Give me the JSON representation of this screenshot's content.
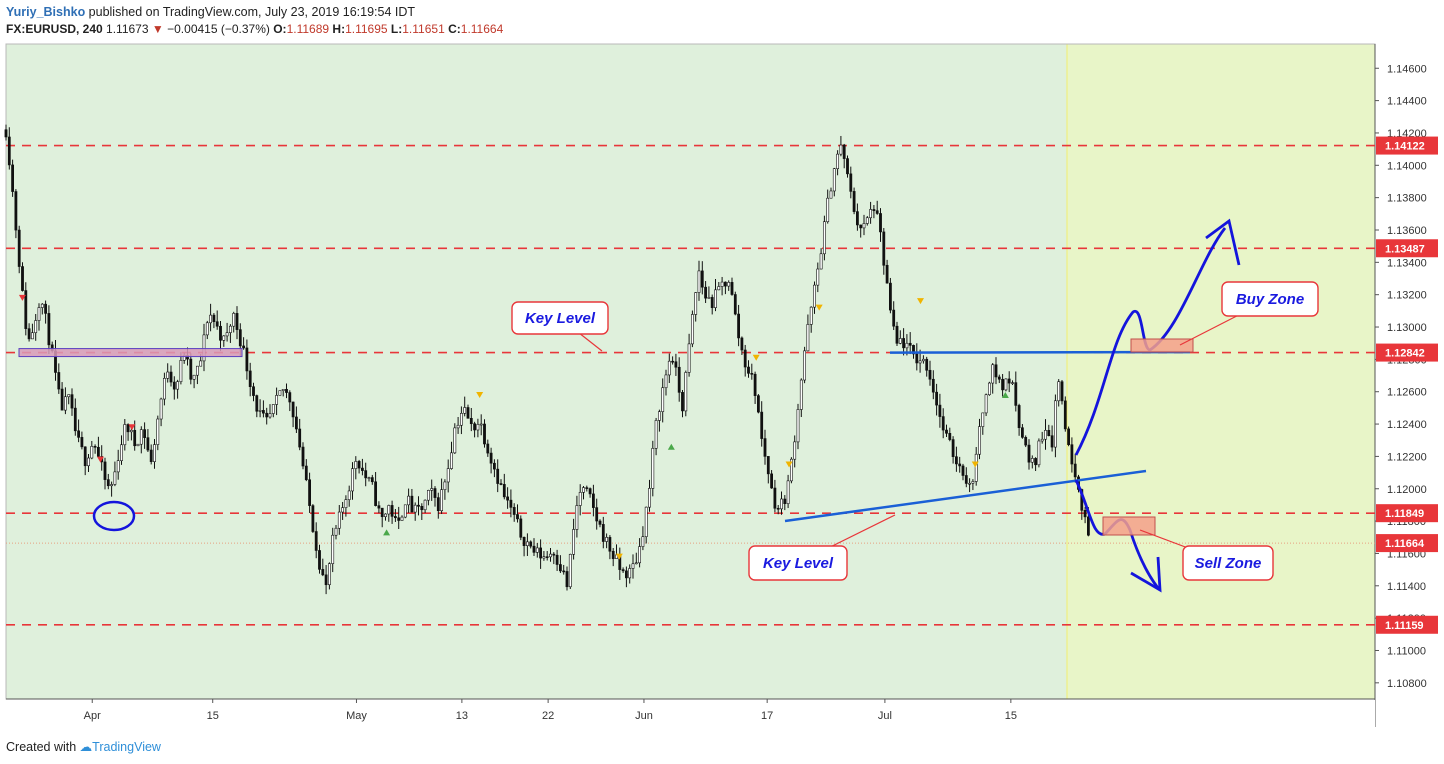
{
  "header": {
    "user": "Yuriy_Bishko",
    "published": " published on TradingView.com, July 23, 2019 16:19:54 IDT",
    "symbol": "FX:EURUSD, 240",
    "last": "1.11673",
    "change": "−0.00415 (−0.37%)",
    "o_label": "O:",
    "o": "1.11689",
    "h_label": "H:",
    "h": "1.11695",
    "l_label": "L:",
    "l": "1.11651",
    "c_label": "C:",
    "c": "1.11664"
  },
  "footer": {
    "created_with": "Created with",
    "brand": "TradingView"
  },
  "colors": {
    "bg_zone1": "#dff0dc",
    "bg_zone2": "#e8f5c8",
    "candle": "#111111",
    "level_line": "#e8363a",
    "trend_line": "#1a5fd6",
    "drawing": "#1414dc",
    "zone_fill": "#f4a08a",
    "label_red": "#e8363a"
  },
  "chart_data": {
    "type": "candlestick",
    "symbol": "FX:EURUSD",
    "timeframe": "240",
    "ylim": [
      1.107,
      1.1475
    ],
    "yticks": [
      "1.10800",
      "1.11000",
      "1.11200",
      "1.11400",
      "1.11600",
      "1.11800",
      "1.12000",
      "1.12200",
      "1.12400",
      "1.12600",
      "1.12800",
      "1.13000",
      "1.13200",
      "1.13400",
      "1.13600",
      "1.13800",
      "1.14000",
      "1.14200",
      "1.14400",
      "1.14600"
    ],
    "xticks": [
      {
        "label": "Apr",
        "t": 0.063
      },
      {
        "label": "15",
        "t": 0.151
      },
      {
        "label": "May",
        "t": 0.256
      },
      {
        "label": "13",
        "t": 0.333
      },
      {
        "label": "22",
        "t": 0.396
      },
      {
        "label": "Jun",
        "t": 0.466
      },
      {
        "label": "17",
        "t": 0.556
      },
      {
        "label": "Jul",
        "t": 0.642
      },
      {
        "label": "15",
        "t": 0.734
      }
    ],
    "levels": [
      {
        "label": "1.14122",
        "value": 1.14122
      },
      {
        "label": "1.13487",
        "value": 1.13487
      },
      {
        "label": "1.12842",
        "value": 1.12842
      },
      {
        "label": "1.11849",
        "value": 1.11849
      },
      {
        "label": "1.11159",
        "value": 1.11159
      }
    ],
    "current": {
      "label": "1.11664",
      "value": 1.11664
    },
    "path": [
      [
        0.0,
        1.1422
      ],
      [
        0.003,
        1.14
      ],
      [
        0.008,
        1.1355
      ],
      [
        0.012,
        1.132
      ],
      [
        0.016,
        1.129
      ],
      [
        0.02,
        1.13
      ],
      [
        0.025,
        1.132
      ],
      [
        0.03,
        1.13
      ],
      [
        0.035,
        1.1275
      ],
      [
        0.04,
        1.125
      ],
      [
        0.046,
        1.1255
      ],
      [
        0.052,
        1.123
      ],
      [
        0.058,
        1.1218
      ],
      [
        0.064,
        1.123
      ],
      [
        0.07,
        1.1212
      ],
      [
        0.074,
        1.12
      ],
      [
        0.078,
        1.1203
      ],
      [
        0.083,
        1.1225
      ],
      [
        0.088,
        1.124
      ],
      [
        0.094,
        1.1228
      ],
      [
        0.1,
        1.1238
      ],
      [
        0.106,
        1.1215
      ],
      [
        0.112,
        1.125
      ],
      [
        0.118,
        1.1275
      ],
      [
        0.124,
        1.1262
      ],
      [
        0.13,
        1.1285
      ],
      [
        0.136,
        1.1265
      ],
      [
        0.142,
        1.1278
      ],
      [
        0.148,
        1.131
      ],
      [
        0.154,
        1.13
      ],
      [
        0.16,
        1.129
      ],
      [
        0.166,
        1.1308
      ],
      [
        0.172,
        1.129
      ],
      [
        0.178,
        1.1268
      ],
      [
        0.184,
        1.1248
      ],
      [
        0.19,
        1.124
      ],
      [
        0.196,
        1.125
      ],
      [
        0.202,
        1.1262
      ],
      [
        0.208,
        1.1255
      ],
      [
        0.214,
        1.123
      ],
      [
        0.22,
        1.1198
      ],
      [
        0.226,
        1.1168
      ],
      [
        0.23,
        1.115
      ],
      [
        0.234,
        1.1138
      ],
      [
        0.238,
        1.1165
      ],
      [
        0.244,
        1.1183
      ],
      [
        0.25,
        1.12
      ],
      [
        0.256,
        1.122
      ],
      [
        0.262,
        1.1208
      ],
      [
        0.268,
        1.12
      ],
      [
        0.274,
        1.118
      ],
      [
        0.28,
        1.119
      ],
      [
        0.286,
        1.1175
      ],
      [
        0.292,
        1.1195
      ],
      [
        0.298,
        1.1185
      ],
      [
        0.304,
        1.1188
      ],
      [
        0.31,
        1.1198
      ],
      [
        0.316,
        1.119
      ],
      [
        0.322,
        1.121
      ],
      [
        0.328,
        1.1238
      ],
      [
        0.334,
        1.125
      ],
      [
        0.34,
        1.1238
      ],
      [
        0.346,
        1.1242
      ],
      [
        0.352,
        1.1225
      ],
      [
        0.358,
        1.121
      ],
      [
        0.364,
        1.1195
      ],
      [
        0.37,
        1.1185
      ],
      [
        0.376,
        1.1172
      ],
      [
        0.382,
        1.1165
      ],
      [
        0.388,
        1.116
      ],
      [
        0.394,
        1.1158
      ],
      [
        0.4,
        1.1162
      ],
      [
        0.406,
        1.115
      ],
      [
        0.41,
        1.114
      ],
      [
        0.416,
        1.1185
      ],
      [
        0.42,
        1.12
      ],
      [
        0.426,
        1.1195
      ],
      [
        0.432,
        1.118
      ],
      [
        0.438,
        1.1168
      ],
      [
        0.444,
        1.1158
      ],
      [
        0.45,
        1.1148
      ],
      [
        0.456,
        1.1148
      ],
      [
        0.462,
        1.116
      ],
      [
        0.466,
        1.1178
      ],
      [
        0.47,
        1.12
      ],
      [
        0.474,
        1.1235
      ],
      [
        0.478,
        1.1255
      ],
      [
        0.482,
        1.127
      ],
      [
        0.486,
        1.1285
      ],
      [
        0.49,
        1.1268
      ],
      [
        0.494,
        1.125
      ],
      [
        0.498,
        1.128
      ],
      [
        0.502,
        1.131
      ],
      [
        0.506,
        1.1335
      ],
      [
        0.51,
        1.132
      ],
      [
        0.516,
        1.1315
      ],
      [
        0.522,
        1.1325
      ],
      [
        0.528,
        1.133
      ],
      [
        0.532,
        1.131
      ],
      [
        0.536,
        1.129
      ],
      [
        0.54,
        1.1278
      ],
      [
        0.544,
        1.127
      ],
      [
        0.548,
        1.1258
      ],
      [
        0.552,
        1.123
      ],
      [
        0.556,
        1.1215
      ],
      [
        0.56,
        1.1195
      ],
      [
        0.564,
        1.1188
      ],
      [
        0.568,
        1.1192
      ],
      [
        0.572,
        1.1205
      ],
      [
        0.576,
        1.1232
      ],
      [
        0.58,
        1.1262
      ],
      [
        0.584,
        1.129
      ],
      [
        0.588,
        1.131
      ],
      [
        0.592,
        1.133
      ],
      [
        0.596,
        1.1352
      ],
      [
        0.6,
        1.1375
      ],
      [
        0.604,
        1.1395
      ],
      [
        0.608,
        1.1408
      ],
      [
        0.611,
        1.1412
      ],
      [
        0.614,
        1.1395
      ],
      [
        0.618,
        1.1378
      ],
      [
        0.622,
        1.1365
      ],
      [
        0.626,
        1.136
      ],
      [
        0.63,
        1.1368
      ],
      [
        0.634,
        1.1375
      ],
      [
        0.638,
        1.136
      ],
      [
        0.642,
        1.1335
      ],
      [
        0.646,
        1.131
      ],
      [
        0.65,
        1.1288
      ],
      [
        0.654,
        1.1292
      ],
      [
        0.66,
        1.1285
      ],
      [
        0.666,
        1.128
      ],
      [
        0.672,
        1.1278
      ],
      [
        0.678,
        1.126
      ],
      [
        0.684,
        1.1238
      ],
      [
        0.69,
        1.1225
      ],
      [
        0.696,
        1.1215
      ],
      [
        0.7,
        1.121
      ],
      [
        0.704,
        1.12
      ],
      [
        0.708,
        1.1215
      ],
      [
        0.712,
        1.124
      ],
      [
        0.716,
        1.1262
      ],
      [
        0.72,
        1.1275
      ],
      [
        0.724,
        1.127
      ],
      [
        0.728,
        1.1262
      ],
      [
        0.732,
        1.127
      ],
      [
        0.736,
        1.126
      ],
      [
        0.74,
        1.1242
      ],
      [
        0.744,
        1.1228
      ],
      [
        0.748,
        1.1213
      ],
      [
        0.752,
        1.1218
      ],
      [
        0.756,
        1.1232
      ],
      [
        0.76,
        1.124
      ],
      [
        0.764,
        1.1228
      ],
      [
        0.768,
        1.127
      ],
      [
        0.772,
        1.1252
      ],
      [
        0.776,
        1.1225
      ],
      [
        0.78,
        1.1215
      ],
      [
        0.784,
        1.12
      ],
      [
        0.788,
        1.118
      ],
      [
        0.792,
        1.1166
      ]
    ],
    "signals": [
      {
        "t": 0.012,
        "v": 1.1318,
        "dir": "down",
        "color": "#e8363a"
      },
      {
        "t": 0.069,
        "v": 1.1218,
        "dir": "down",
        "color": "#e8363a"
      },
      {
        "t": 0.092,
        "v": 1.1238,
        "dir": "down",
        "color": "#e8363a"
      },
      {
        "t": 0.278,
        "v": 1.1173,
        "dir": "up",
        "color": "#4aa84a"
      },
      {
        "t": 0.346,
        "v": 1.1258,
        "dir": "down",
        "color": "#f0b400"
      },
      {
        "t": 0.448,
        "v": 1.1158,
        "dir": "down",
        "color": "#f0b400"
      },
      {
        "t": 0.486,
        "v": 1.1226,
        "dir": "up",
        "color": "#4aa84a"
      },
      {
        "t": 0.548,
        "v": 1.1281,
        "dir": "down",
        "color": "#f0b400"
      },
      {
        "t": 0.572,
        "v": 1.1215,
        "dir": "down",
        "color": "#f0b400"
      },
      {
        "t": 0.594,
        "v": 1.1312,
        "dir": "down",
        "color": "#f0b400"
      },
      {
        "t": 0.668,
        "v": 1.1316,
        "dir": "down",
        "color": "#f0b400"
      },
      {
        "t": 0.708,
        "v": 1.1215,
        "dir": "down",
        "color": "#f0b400"
      },
      {
        "t": 0.73,
        "v": 1.1258,
        "dir": "up",
        "color": "#4aa84a"
      }
    ],
    "annotations": {
      "key_level_1": "Key Level",
      "key_level_2": "Key Level",
      "buy_zone": "Buy Zone",
      "sell_zone": "Sell Zone"
    },
    "grid": false,
    "legend": "none"
  }
}
